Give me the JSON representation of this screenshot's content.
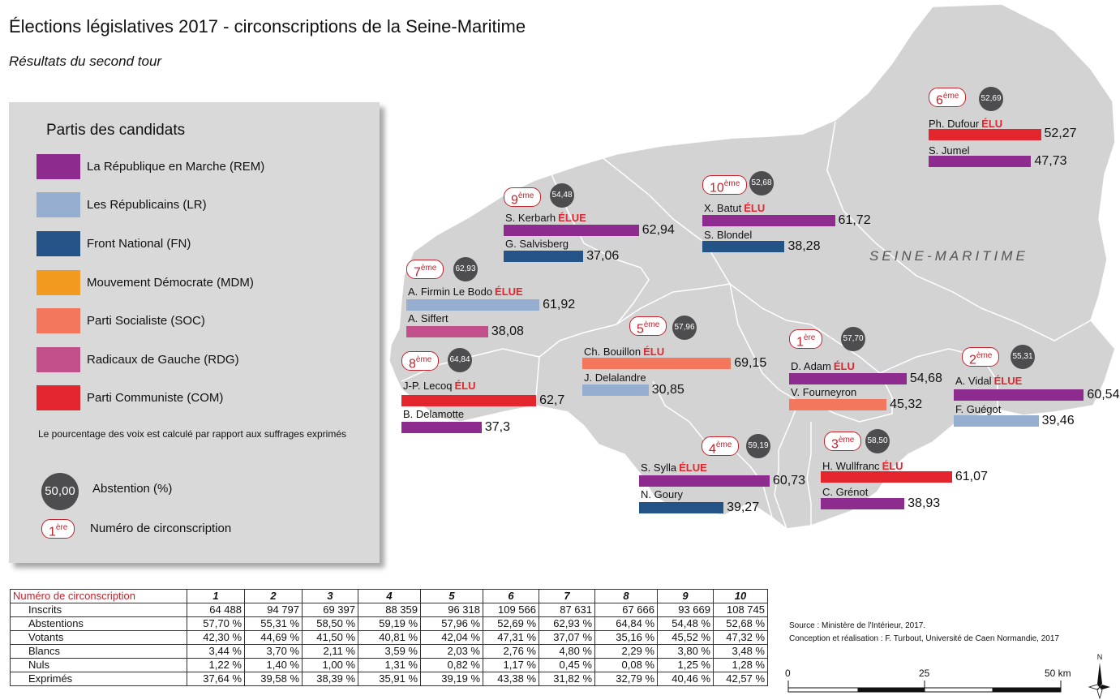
{
  "title": "Élections législatives 2017 - circonscriptions de la Seine-Maritime",
  "subtitle": "Résultats du second tour",
  "map": {
    "department_label": "SEINE-MARITIME"
  },
  "legend": {
    "title": "Partis des candidats",
    "parties": [
      {
        "label": "La République en Marche (REM)",
        "color": "#8e2b8f"
      },
      {
        "label": "Les Républicains (LR)",
        "color": "#95aed0"
      },
      {
        "label": "Front National (FN)",
        "color": "#245487"
      },
      {
        "label": "Mouvement Démocrate (MDM)",
        "color": "#f29a20"
      },
      {
        "label": "Parti Socialiste (SOC)",
        "color": "#f3775c"
      },
      {
        "label": "Radicaux de Gauche (RDG)",
        "color": "#c04f8a"
      },
      {
        "label": "Parti Communiste (COM)",
        "color": "#e3262d"
      }
    ],
    "note": "Le pourcentage des voix est calculé par rapport aux suffrages exprimés",
    "abstention_sample": "50,00",
    "abstention_label": "Abstention (%)",
    "number_sample": "1",
    "number_sample_sup": "ère",
    "number_label": "Numéro de circonscription"
  },
  "circonscriptions": [
    {
      "num": "6",
      "sup": "ème",
      "abstention": "52,69",
      "c1": {
        "name": "Ph. Dufour",
        "elu": "ÉLU",
        "pct": "52,27",
        "value": 52.27,
        "color": "#e3262d"
      },
      "c2": {
        "name": "S. Jumel",
        "pct": "47,73",
        "value": 47.73,
        "color": "#8e2b8f"
      }
    },
    {
      "num": "10",
      "sup": "ème",
      "abstention": "52,68",
      "c1": {
        "name": "X. Batut",
        "elu": "ÉLU",
        "pct": "61,72",
        "value": 61.72,
        "color": "#8e2b8f"
      },
      "c2": {
        "name": "S. Blondel",
        "pct": "38,28",
        "value": 38.28,
        "color": "#245487"
      }
    },
    {
      "num": "9",
      "sup": "ème",
      "abstention": "54,48",
      "c1": {
        "name": "S. Kerbarh",
        "elu": "ÉLUE",
        "pct": "62,94",
        "value": 62.94,
        "color": "#8e2b8f"
      },
      "c2": {
        "name": "G. Salvisberg",
        "pct": "37,06",
        "value": 37.06,
        "color": "#245487"
      }
    },
    {
      "num": "7",
      "sup": "ème",
      "abstention": "62,93",
      "c1": {
        "name": "A. Firmin Le Bodo",
        "elu": "ÉLUE",
        "pct": "61,92",
        "value": 61.92,
        "color": "#95aed0"
      },
      "c2": {
        "name": "A. Siffert",
        "pct": "38,08",
        "value": 38.08,
        "color": "#c04f8a"
      }
    },
    {
      "num": "5",
      "sup": "ème",
      "abstention": "57,96",
      "c1": {
        "name": "Ch. Bouillon",
        "elu": "ÉLU",
        "pct": "69,15",
        "value": 69.15,
        "color": "#f3775c"
      },
      "c2": {
        "name": "J. Delalandre",
        "pct": "30,85",
        "value": 30.85,
        "color": "#95aed0"
      }
    },
    {
      "num": "1",
      "sup": "ère",
      "abstention": "57,70",
      "c1": {
        "name": "D. Adam",
        "elu": "ÉLU",
        "pct": "54,68",
        "value": 54.68,
        "color": "#8e2b8f"
      },
      "c2": {
        "name": "V. Fourneyron",
        "pct": "45,32",
        "value": 45.32,
        "color": "#f3775c"
      }
    },
    {
      "num": "2",
      "sup": "ème",
      "abstention": "55,31",
      "c1": {
        "name": "A. Vidal",
        "elu": "ÉLUE",
        "pct": "60,54",
        "value": 60.54,
        "color": "#8e2b8f"
      },
      "c2": {
        "name": "F. Guégot",
        "pct": "39,46",
        "value": 39.46,
        "color": "#95aed0"
      }
    },
    {
      "num": "8",
      "sup": "ème",
      "abstention": "64,84",
      "c1": {
        "name": "J-P. Lecoq",
        "elu": "ÉLU",
        "pct": "62,7",
        "value": 62.7,
        "color": "#e3262d"
      },
      "c2": {
        "name": "B. Delamotte",
        "pct": "37,3",
        "value": 37.3,
        "color": "#8e2b8f"
      }
    },
    {
      "num": "4",
      "sup": "ème",
      "abstention": "59,19",
      "c1": {
        "name": "S. Sylla",
        "elu": "ÉLUE",
        "pct": "60,73",
        "value": 60.73,
        "color": "#8e2b8f"
      },
      "c2": {
        "name": "N. Goury",
        "pct": "39,27",
        "value": 39.27,
        "color": "#245487"
      }
    },
    {
      "num": "3",
      "sup": "ème",
      "abstention": "58,50",
      "c1": {
        "name": "H. Wullfranc",
        "elu": "ÉLU",
        "pct": "61,07",
        "value": 61.07,
        "color": "#e3262d"
      },
      "c2": {
        "name": "C. Grénot",
        "pct": "38,93",
        "value": 38.93,
        "color": "#8e2b8f"
      }
    }
  ],
  "table": {
    "header_label": "Numéro de circonscription",
    "columns": [
      "1",
      "2",
      "3",
      "4",
      "5",
      "6",
      "7",
      "8",
      "9",
      "10"
    ],
    "rows": [
      {
        "label": "Inscrits",
        "values": [
          "64 488",
          "94 797",
          "69 397",
          "88 359",
          "96 318",
          "109 566",
          "87 631",
          "67 666",
          "93 669",
          "108 745"
        ]
      },
      {
        "label": "Abstentions",
        "values": [
          "57,70 %",
          "55,31 %",
          "58,50 %",
          "59,19 %",
          "57,96 %",
          "52,69 %",
          "62,93 %",
          "64,84 %",
          "54,48 %",
          "52,68 %"
        ]
      },
      {
        "label": "Votants",
        "values": [
          "42,30 %",
          "44,69 %",
          "41,50 %",
          "40,81 %",
          "42,04 %",
          "47,31 %",
          "37,07 %",
          "35,16 %",
          "45,52 %",
          "47,32 %"
        ]
      },
      {
        "label": "Blancs",
        "values": [
          "3,44 %",
          "3,70 %",
          "2,11 %",
          "3,59 %",
          "2,03 %",
          "2,76 %",
          "4,80 %",
          "2,29 %",
          "3,80 %",
          "3,48 %"
        ]
      },
      {
        "label": "Nuls",
        "values": [
          "1,22 %",
          "1,40 %",
          "1,00 %",
          "1,31 %",
          "0,82 %",
          "1,17 %",
          "0,45 %",
          "0,08 %",
          "1,25 %",
          "1,28 %"
        ]
      },
      {
        "label": "Exprimés",
        "values": [
          "37,64 %",
          "39,58 %",
          "38,39 %",
          "35,91 %",
          "39,19 %",
          "43,38 %",
          "31,82 %",
          "32,79 %",
          "40,46 %",
          "42,57 %"
        ]
      }
    ]
  },
  "source": "Source : Ministère de l'Intérieur, 2017.",
  "credits": "Conception et réalisation : F. Turbout, Université de Caen Normandie, 2017",
  "scale": {
    "labels": [
      "0",
      "25",
      "50 km"
    ]
  },
  "compass": {
    "north_label": "N"
  }
}
